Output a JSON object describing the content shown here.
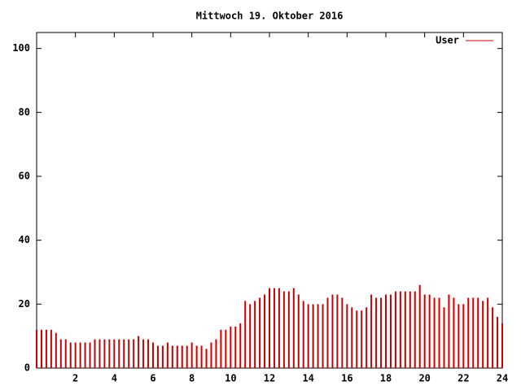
{
  "chart_data": {
    "type": "impulse",
    "title": "Mittwoch 19. Oktober 2016",
    "x": [
      0,
      0.25,
      0.5,
      0.75,
      1,
      1.25,
      1.5,
      1.75,
      2,
      2.25,
      2.5,
      2.75,
      3,
      3.25,
      3.5,
      3.75,
      4,
      4.25,
      4.5,
      4.75,
      5,
      5.25,
      5.5,
      5.75,
      6,
      6.25,
      6.5,
      6.75,
      7,
      7.25,
      7.5,
      7.75,
      8,
      8.25,
      8.5,
      8.75,
      9,
      9.25,
      9.5,
      9.75,
      10,
      10.25,
      10.5,
      10.75,
      11,
      11.25,
      11.5,
      11.75,
      12,
      12.25,
      12.5,
      12.75,
      13,
      13.25,
      13.5,
      13.75,
      14,
      14.25,
      14.5,
      14.75,
      15,
      15.25,
      15.5,
      15.75,
      16,
      16.25,
      16.5,
      16.75,
      17,
      17.25,
      17.5,
      17.75,
      18,
      18.25,
      18.5,
      18.75,
      19,
      19.25,
      19.5,
      19.75,
      20,
      20.25,
      20.5,
      20.75,
      21,
      21.25,
      21.5,
      21.75,
      22,
      22.25,
      22.5,
      22.75,
      23,
      23.25,
      23.5,
      23.75,
      24
    ],
    "series": [
      {
        "name": "User",
        "color": "#cc0000",
        "values": [
          12,
          12,
          12,
          12,
          11,
          9,
          9,
          8,
          8,
          8,
          8,
          8,
          9,
          9,
          9,
          9,
          9,
          9,
          9,
          9,
          9,
          10,
          9,
          9,
          8,
          7,
          7,
          8,
          7,
          7,
          7,
          7,
          8,
          7,
          7,
          6,
          8,
          9,
          12,
          12,
          13,
          13,
          14,
          21,
          20,
          21,
          22,
          23,
          25,
          25,
          25,
          24,
          24,
          25,
          23,
          21,
          20,
          20,
          20,
          20,
          22,
          23,
          23,
          22,
          20,
          19,
          18,
          18,
          19,
          23,
          22,
          22,
          23,
          23,
          24,
          24,
          24,
          24,
          24,
          26,
          23,
          23,
          22,
          22,
          19,
          23,
          22,
          20,
          20,
          22,
          22,
          22,
          21,
          22,
          19,
          16,
          14
        ]
      }
    ],
    "xlim": [
      0,
      24
    ],
    "xticks": [
      2,
      4,
      6,
      8,
      10,
      12,
      14,
      16,
      18,
      20,
      22,
      24
    ],
    "ylim": [
      0,
      105
    ],
    "yticks": [
      0,
      20,
      40,
      60,
      80,
      100
    ],
    "legend": "upper right"
  }
}
